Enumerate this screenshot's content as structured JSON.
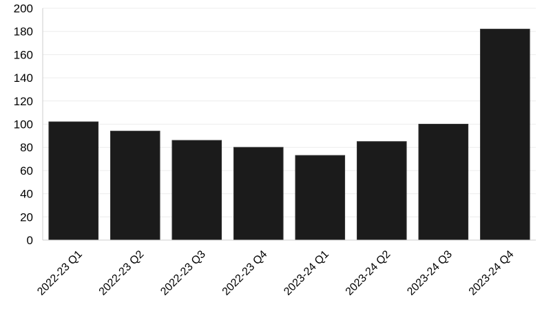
{
  "chart_data": {
    "type": "bar",
    "title": "",
    "xlabel": "",
    "ylabel": "",
    "categories": [
      "2022-23 Q1",
      "2022-23 Q2",
      "2022-23 Q3",
      "2022-23 Q4",
      "2023-24 Q1",
      "2023-24 Q2",
      "2023-24 Q3",
      "2023-24 Q4"
    ],
    "values": [
      102,
      94,
      86,
      80,
      73,
      85,
      100,
      182
    ],
    "ylim": [
      0,
      200
    ],
    "yticks": [
      0,
      20,
      40,
      60,
      80,
      100,
      120,
      140,
      160,
      180,
      200
    ],
    "grid": true,
    "legend": "none",
    "bar_color": "#1b1b1b",
    "bar_edge_color": "#333333",
    "grid_color": "#ececec"
  }
}
